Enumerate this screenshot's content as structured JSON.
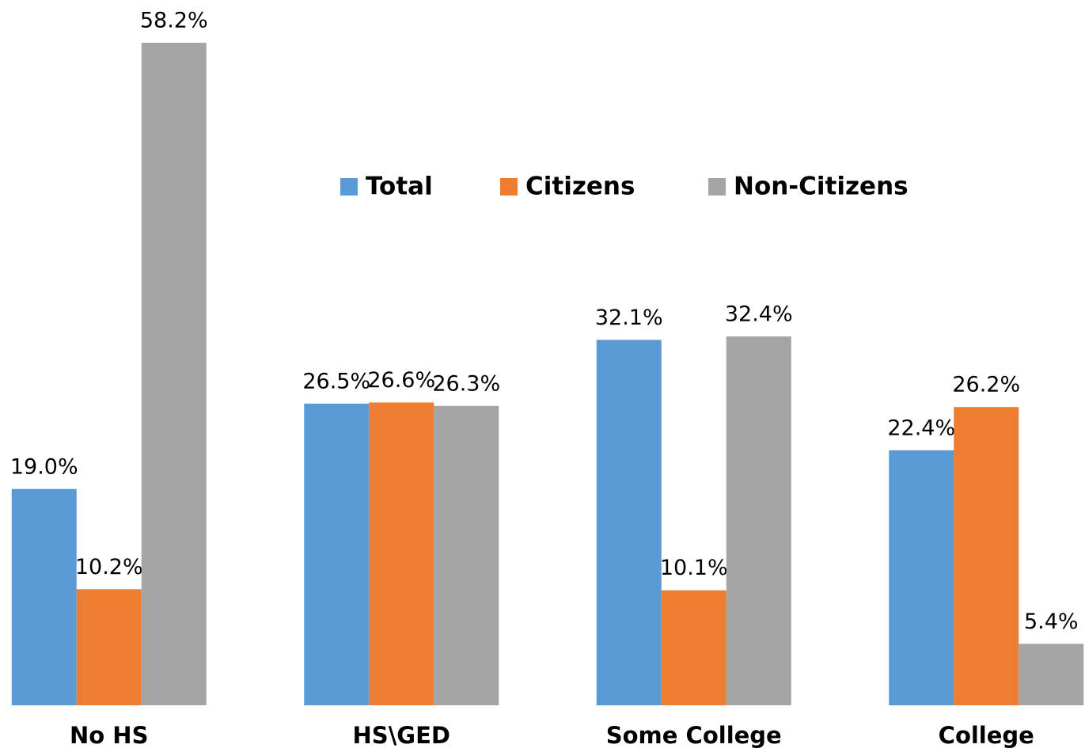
{
  "chart_data": {
    "type": "bar",
    "categories": [
      "No HS",
      "HS\\GED",
      "Some College",
      "College"
    ],
    "series": [
      {
        "name": "Total",
        "color": "#5b9bd5",
        "values": [
          19.0,
          26.5,
          32.1,
          22.4
        ],
        "value_labels": [
          "19.0%",
          "26.5%",
          "32.1%",
          "22.4%"
        ]
      },
      {
        "name": "Citizens",
        "color": "#ed7d31",
        "values": [
          10.2,
          26.6,
          10.1,
          26.2
        ],
        "value_labels": [
          "10.2%",
          "26.6%",
          "10.1%",
          "26.2%"
        ]
      },
      {
        "name": "Non-Citizens",
        "color": "#a5a5a5",
        "values": [
          58.2,
          26.3,
          32.4,
          5.4
        ],
        "value_labels": [
          "58.2%",
          "26.3%",
          "32.4%",
          "5.4%"
        ]
      }
    ],
    "legend": "top"
  }
}
